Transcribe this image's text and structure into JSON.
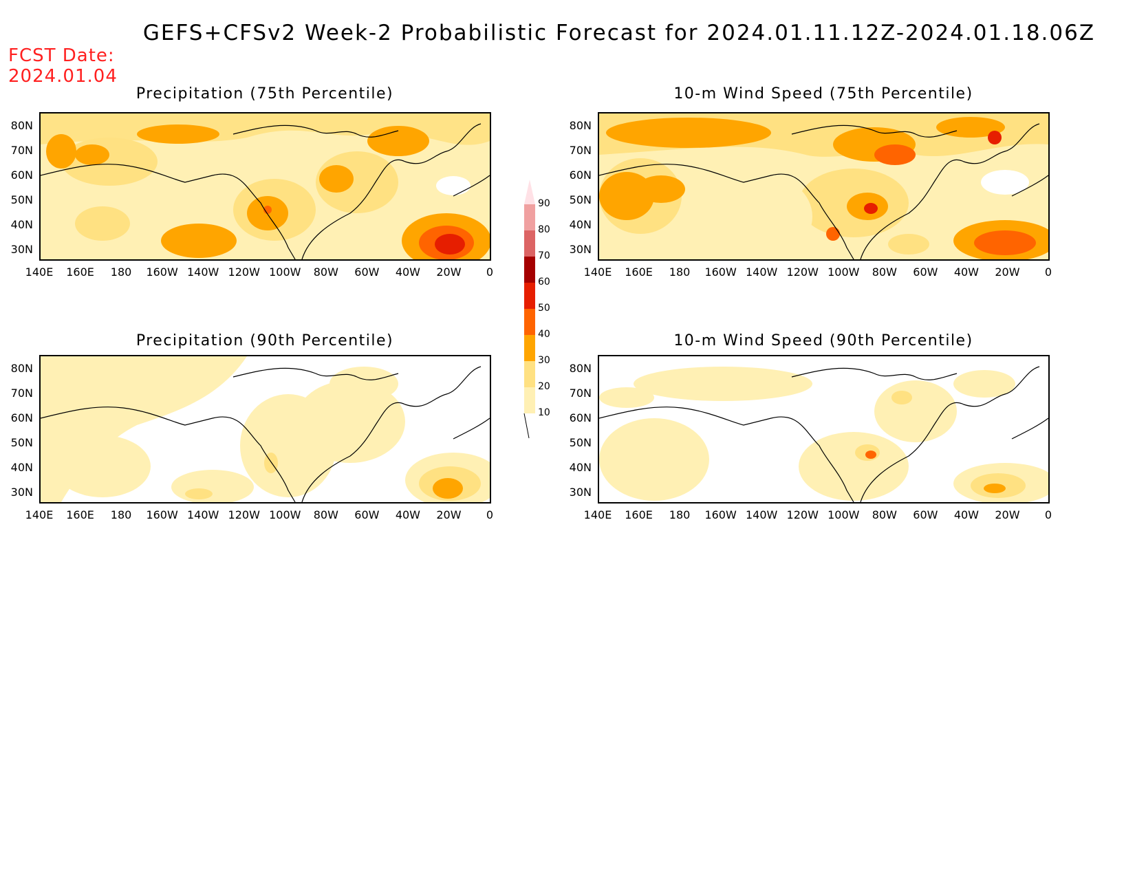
{
  "header": {
    "title": "GEFS+CFSv2 Week-2 Probabilistic Forecast for 2024.01.11.12Z-2024.01.18.06Z",
    "fcst_label": "FCST Date:",
    "fcst_date": "2024.01.04"
  },
  "panels": [
    {
      "title": "Precipitation (75th Percentile)"
    },
    {
      "title": "10-m Wind Speed (75th Percentile)"
    },
    {
      "title": "Precipitation (90th Percentile)"
    },
    {
      "title": "10-m Wind Speed (90th Percentile)"
    }
  ],
  "axes": {
    "lat_labels": [
      "80N",
      "70N",
      "60N",
      "50N",
      "40N",
      "30N"
    ],
    "lon_labels": [
      "140E",
      "160E",
      "180",
      "160W",
      "140W",
      "120W",
      "100W",
      "80W",
      "60W",
      "40W",
      "20W",
      "0"
    ]
  },
  "colorbar": {
    "levels": [
      "10",
      "20",
      "30",
      "40",
      "50",
      "60",
      "70",
      "80",
      "90"
    ],
    "colors": [
      "#fff0b4",
      "#ffe182",
      "#ffa500",
      "#ff6400",
      "#e61e00",
      "#a50000",
      "#dc6464",
      "#f0a0a0",
      "#ffe1e6"
    ]
  }
}
